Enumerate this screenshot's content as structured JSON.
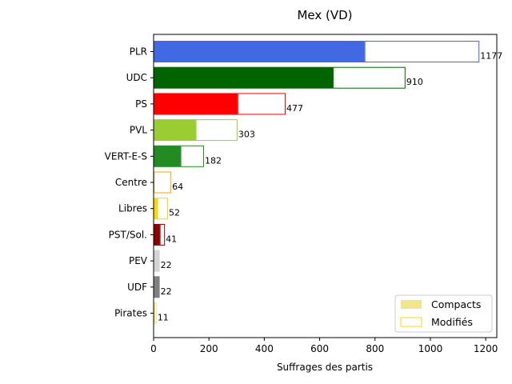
{
  "chart_data": {
    "type": "bar",
    "orientation": "horizontal",
    "stacked": true,
    "title": "Mex (VD)",
    "xlabel": "Suffrages des partis",
    "ylabel": "",
    "xlim": [
      0,
      1240
    ],
    "xticks": [
      0,
      200,
      400,
      600,
      800,
      1000,
      1200
    ],
    "grid": false,
    "legend_position": "bottom-right",
    "categories": [
      "PLR",
      "UDC",
      "PS",
      "PVL",
      "VERT-E-S",
      "Centre",
      "Libres",
      "PST/Sol.",
      "PEV",
      "UDF",
      "Pirates"
    ],
    "colors": [
      "#4169e1",
      "#006400",
      "#ff0000",
      "#9acd32",
      "#228b22",
      "#ffa500",
      "#ffd700",
      "#8b0000",
      "#d3d3d3",
      "#808080",
      "#f0e68c"
    ],
    "series": [
      {
        "name": "Compacts",
        "values": [
          762,
          648,
          303,
          152,
          97,
          0,
          13,
          22,
          22,
          22,
          3
        ]
      },
      {
        "name": "Modifiés",
        "values": [
          415,
          262,
          174,
          151,
          85,
          64,
          39,
          19,
          0,
          0,
          8
        ]
      }
    ],
    "totals": [
      1177,
      910,
      477,
      303,
      182,
      64,
      52,
      41,
      22,
      22,
      11
    ],
    "legend": {
      "compact_color": "#f0e68c",
      "modified_color": "#ffd700"
    }
  }
}
